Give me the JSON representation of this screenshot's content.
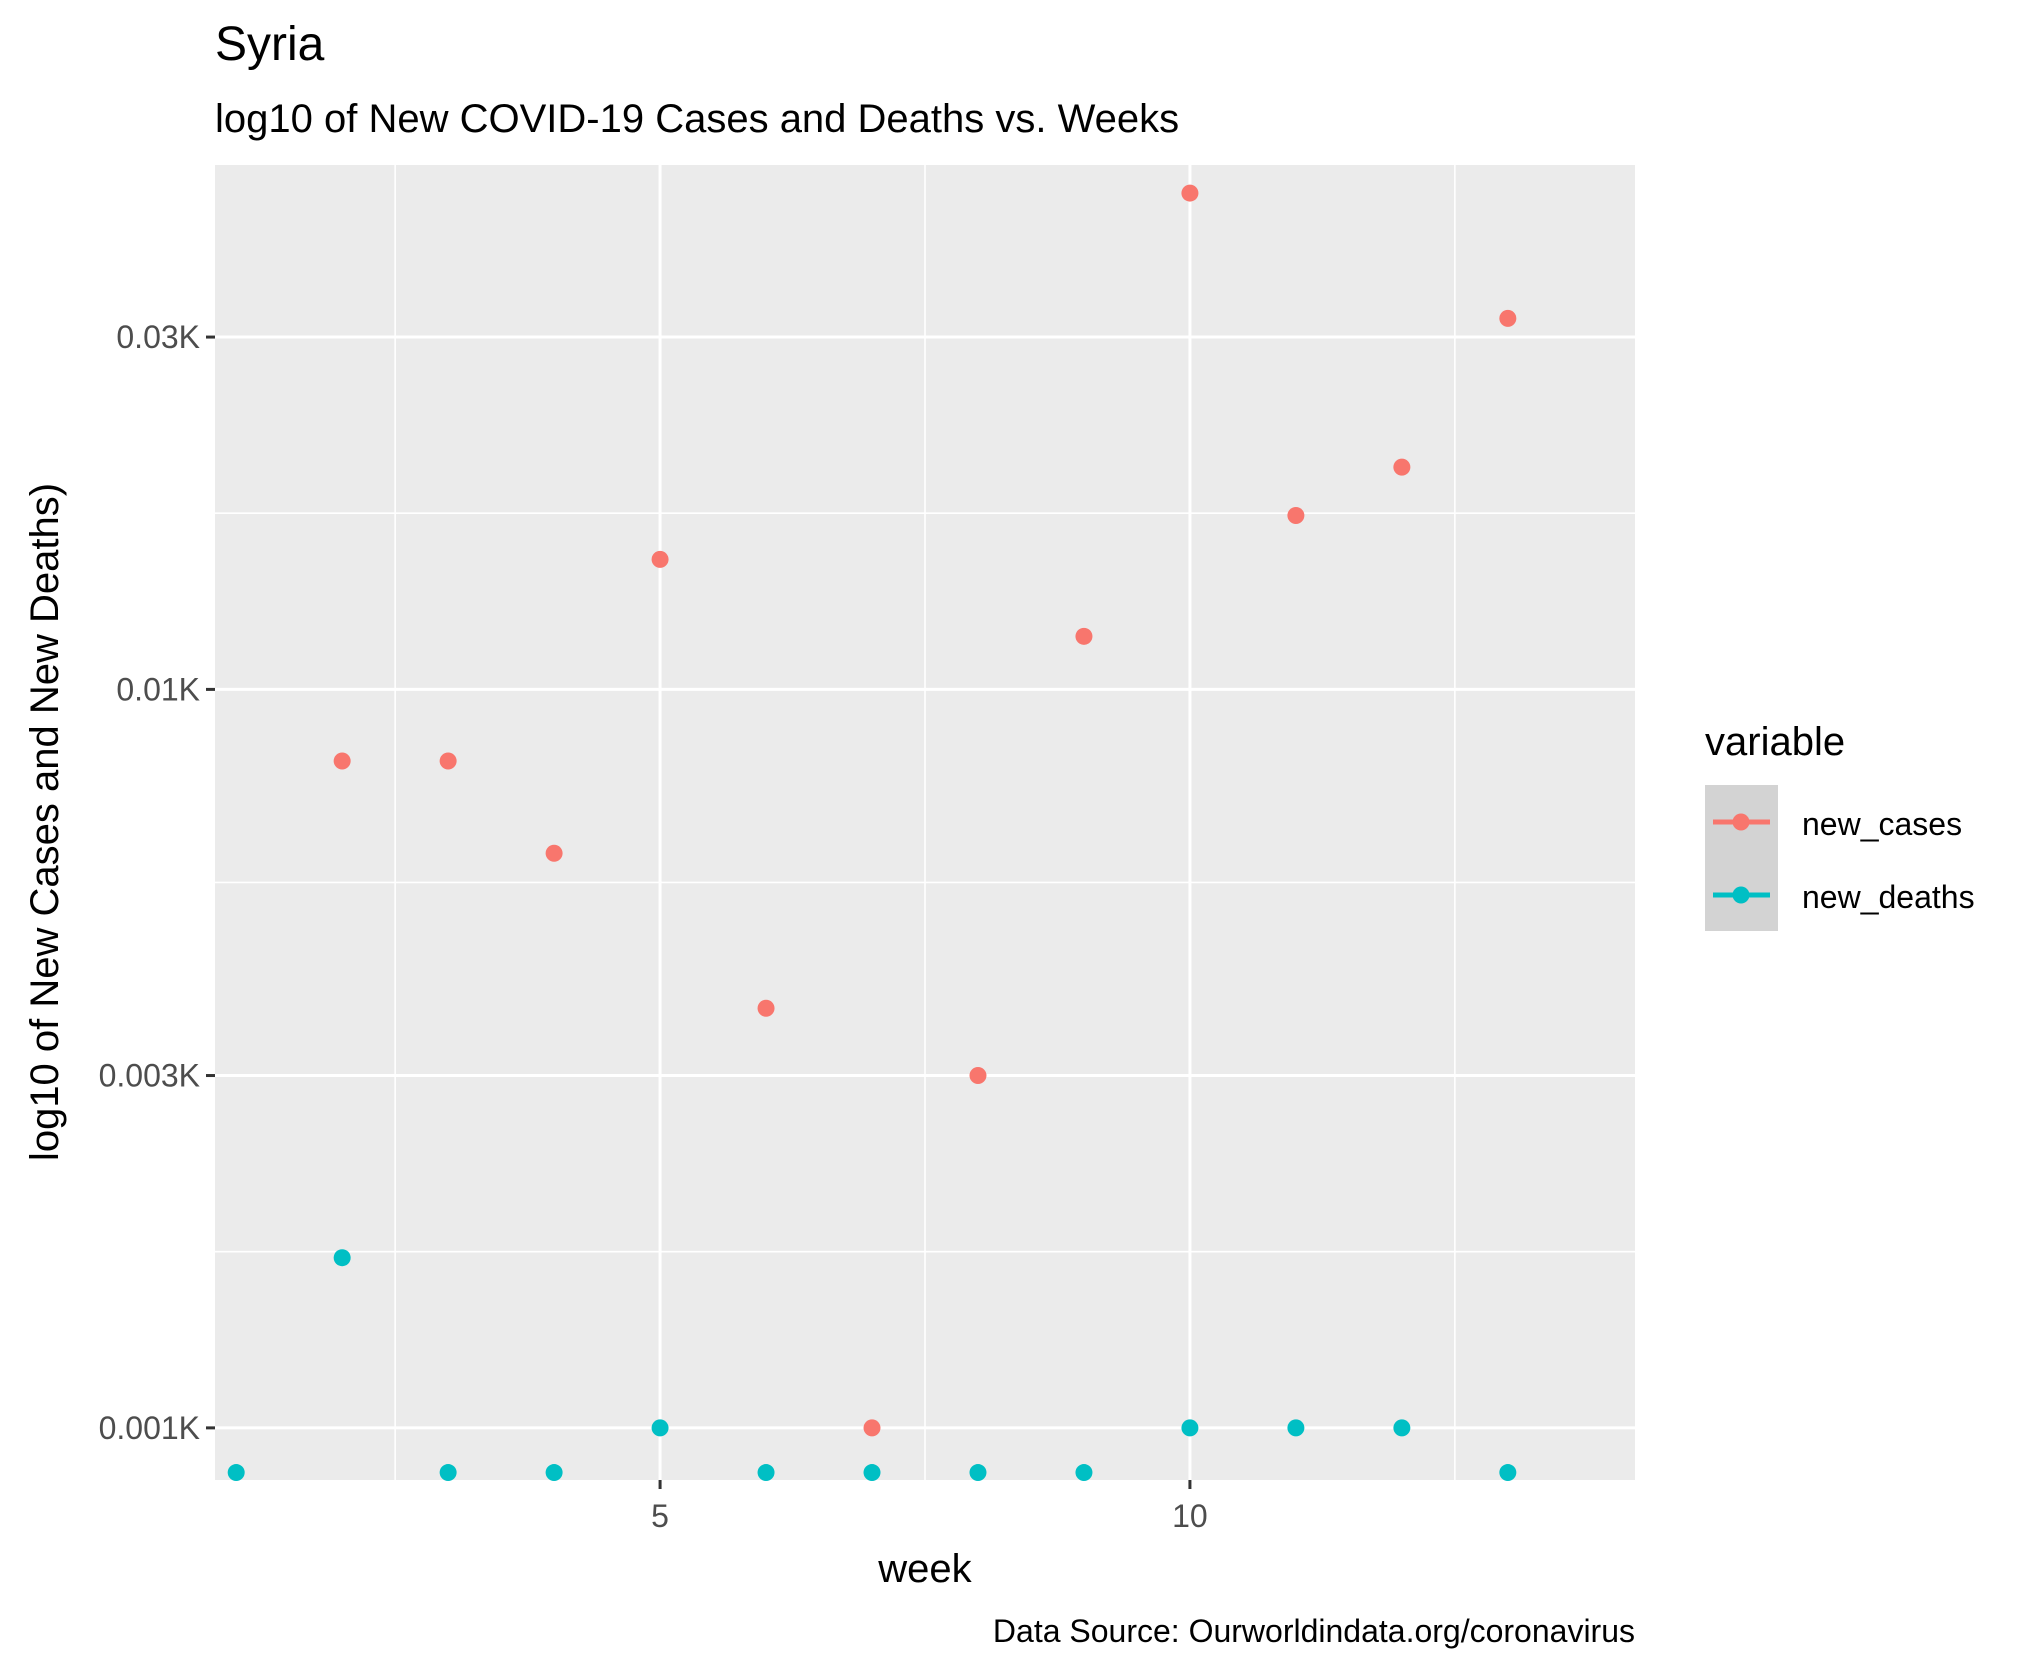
{
  "chart_data": {
    "type": "scatter",
    "title": "Syria",
    "subtitle": "log10 of New COVID-19 Cases and Deaths vs. Weeks",
    "xlabel": "week",
    "ylabel": "log10 of New Cases and New Deaths)",
    "caption": "Data Source: Ourworldindata.org/coronavirus",
    "x_scale": "linear",
    "y_scale": "log10",
    "xlim": [
      0.8,
      14.2
    ],
    "ylim": [
      0.00085,
      0.0513
    ],
    "x_ticks": [
      5,
      10
    ],
    "x_tick_labels": [
      "5",
      "10"
    ],
    "y_ticks": [
      0.001,
      0.003,
      0.01,
      0.03
    ],
    "y_tick_labels": [
      "0.001K",
      "0.003K",
      "0.01K",
      "0.03K"
    ],
    "grid": true,
    "legend": {
      "title": "variable",
      "placement": "right",
      "entries": [
        "new_cases",
        "new_deaths"
      ]
    },
    "series": [
      {
        "name": "new_cases",
        "color": "#F8766D",
        "points": [
          {
            "x": 2,
            "y": 0.008
          },
          {
            "x": 3,
            "y": 0.008
          },
          {
            "x": 4,
            "y": 0.006
          },
          {
            "x": 5,
            "y": 0.015
          },
          {
            "x": 6,
            "y": 0.0037
          },
          {
            "x": 7,
            "y": 0.001
          },
          {
            "x": 8,
            "y": 0.003
          },
          {
            "x": 9,
            "y": 0.0118
          },
          {
            "x": 10,
            "y": 0.047
          },
          {
            "x": 11,
            "y": 0.0172
          },
          {
            "x": 12,
            "y": 0.02
          },
          {
            "x": 13,
            "y": 0.0318
          }
        ]
      },
      {
        "name": "new_deaths",
        "color": "#00BFC4",
        "points": [
          {
            "x": 1,
            "y": 0.00087
          },
          {
            "x": 2,
            "y": 0.0017
          },
          {
            "x": 3,
            "y": 0.00087
          },
          {
            "x": 4,
            "y": 0.00087
          },
          {
            "x": 5,
            "y": 0.001
          },
          {
            "x": 6,
            "y": 0.00087
          },
          {
            "x": 7,
            "y": 0.00087
          },
          {
            "x": 8,
            "y": 0.00087
          },
          {
            "x": 9,
            "y": 0.00087
          },
          {
            "x": 10,
            "y": 0.001
          },
          {
            "x": 11,
            "y": 0.001
          },
          {
            "x": 12,
            "y": 0.001
          },
          {
            "x": 13,
            "y": 0.00087
          }
        ]
      }
    ]
  }
}
